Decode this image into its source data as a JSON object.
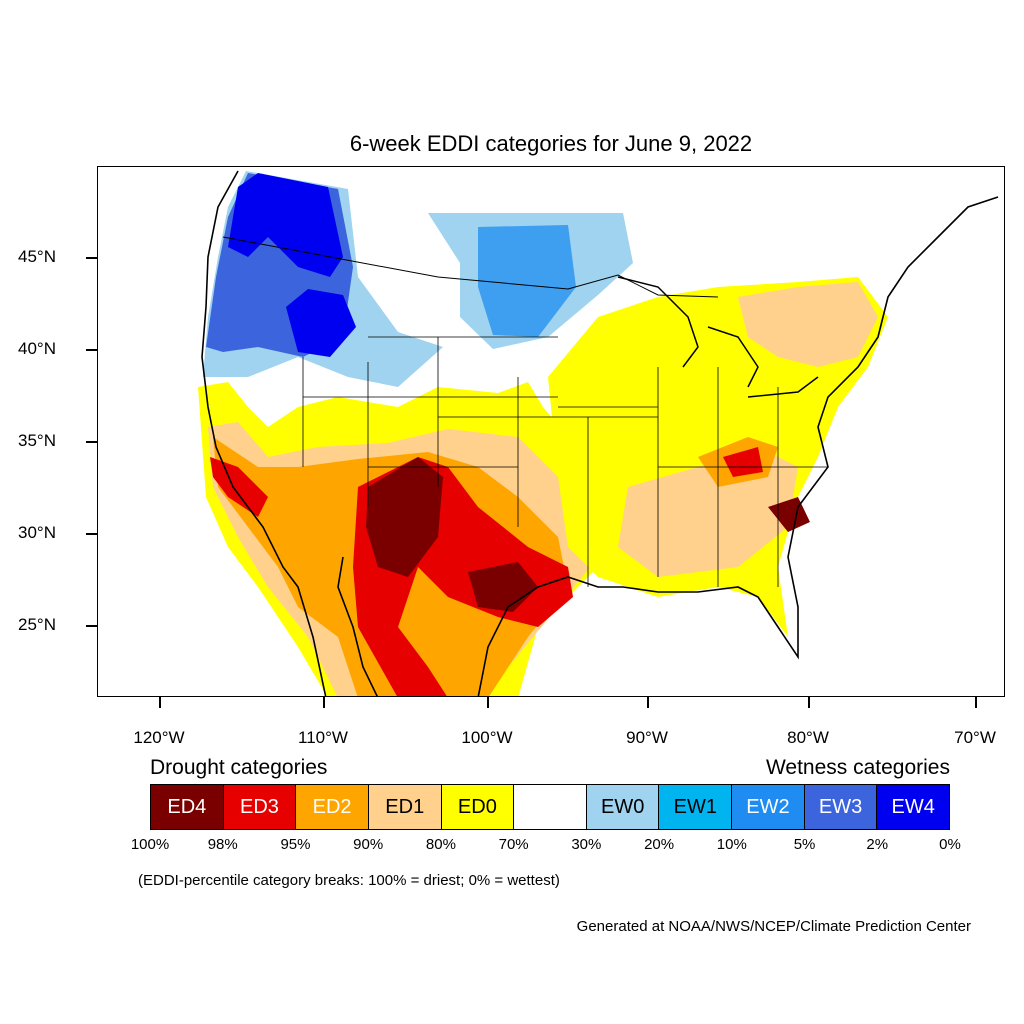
{
  "title": "6-week EDDI categories for June 9, 2022",
  "axes": {
    "lat_labels": [
      "45°N",
      "40°N",
      "35°N",
      "30°N",
      "25°N"
    ],
    "lon_labels": [
      "120°W",
      "110°W",
      "100°W",
      "90°W",
      "80°W",
      "70°W"
    ]
  },
  "legend": {
    "drought_heading": "Drought categories",
    "wetness_heading": "Wetness categories",
    "categories": [
      {
        "label": "ED4",
        "color": "#7a0000",
        "text_color": "#ffffff"
      },
      {
        "label": "ED3",
        "color": "#e60000",
        "text_color": "#ffffff"
      },
      {
        "label": "ED2",
        "color": "#ffa500",
        "text_color": "#ffffff"
      },
      {
        "label": "ED1",
        "color": "#ffd18c",
        "text_color": "#000000"
      },
      {
        "label": "ED0",
        "color": "#ffff00",
        "text_color": "#000000"
      },
      {
        "label": "",
        "color": "#ffffff",
        "text_color": "#000000"
      },
      {
        "label": "EW0",
        "color": "#9fd3ef",
        "text_color": "#000000"
      },
      {
        "label": "EW1",
        "color": "#00b4f0",
        "text_color": "#000000"
      },
      {
        "label": "EW2",
        "color": "#1e8cf0",
        "text_color": "#ffffff"
      },
      {
        "label": "EW3",
        "color": "#3c64dc",
        "text_color": "#ffffff"
      },
      {
        "label": "EW4",
        "color": "#0000f0",
        "text_color": "#ffffff"
      }
    ],
    "percent_breaks": [
      "100%",
      "98%",
      "95%",
      "90%",
      "80%",
      "70%",
      "30%",
      "20%",
      "10%",
      "5%",
      "2%",
      "0%"
    ]
  },
  "breaks_note": "(EDDI-percentile category breaks: 100% = driest; 0% = wettest)",
  "credit": "Generated at NOAA/NWS/NCEP/Climate Prediction Center"
}
